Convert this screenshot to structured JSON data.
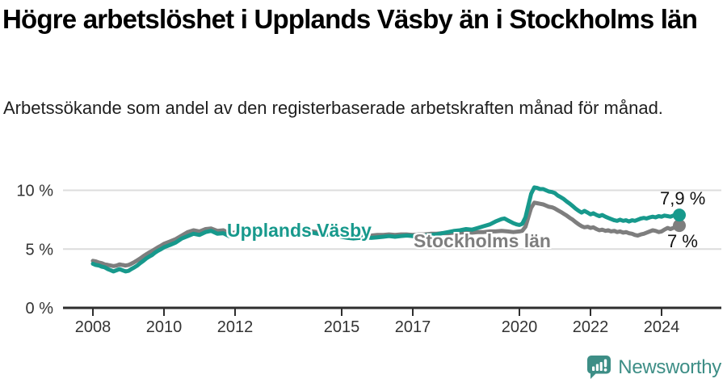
{
  "title": "Högre arbetslöshet i Upplands Väsby än i Stockholms län",
  "subtitle": "Arbetssökande som andel av den registerbaserade arbetskraften månad för månad.",
  "branding": {
    "logo_text": "Newsworthy",
    "color": "#3d8e86"
  },
  "chart_data": {
    "type": "line",
    "title": "Högre arbetslöshet i Upplands Väsby än i Stockholms län",
    "xlabel": "",
    "ylabel": "",
    "unit": "%",
    "grid": "horizontal",
    "legend_position": "inline-labels",
    "x_axis": {
      "range": [
        2008,
        2024.5
      ],
      "ticks": [
        2008,
        2010,
        2012,
        2015,
        2017,
        2020,
        2022,
        2024
      ]
    },
    "y_axis": {
      "range": [
        0,
        10.5
      ],
      "ticks": [
        {
          "value": 0,
          "label": "0 %"
        },
        {
          "value": 5,
          "label": "5 %"
        },
        {
          "value": 10,
          "label": "10 %"
        }
      ]
    },
    "series": [
      {
        "name": "Upplands Väsby",
        "slug": "upplands-vasby",
        "color": "#17998c",
        "end_label": "7,9 %",
        "end_value": 7.9,
        "points": [
          [
            2008,
            3.75
          ],
          [
            2008.08,
            3.65
          ],
          [
            2008.17,
            3.6
          ],
          [
            2008.25,
            3.5
          ],
          [
            2008.33,
            3.45
          ],
          [
            2008.42,
            3.3
          ],
          [
            2008.5,
            3.2
          ],
          [
            2008.58,
            3.1
          ],
          [
            2008.67,
            3.2
          ],
          [
            2008.75,
            3.3
          ],
          [
            2008.83,
            3.2
          ],
          [
            2008.92,
            3.1
          ],
          [
            2009,
            3.15
          ],
          [
            2009.08,
            3.3
          ],
          [
            2009.17,
            3.45
          ],
          [
            2009.25,
            3.6
          ],
          [
            2009.33,
            3.8
          ],
          [
            2009.42,
            4
          ],
          [
            2009.5,
            4.2
          ],
          [
            2009.58,
            4.35
          ],
          [
            2009.67,
            4.5
          ],
          [
            2009.75,
            4.7
          ],
          [
            2009.83,
            4.85
          ],
          [
            2009.92,
            5
          ],
          [
            2010,
            5.15
          ],
          [
            2010.17,
            5.35
          ],
          [
            2010.33,
            5.55
          ],
          [
            2010.5,
            5.9
          ],
          [
            2010.67,
            6.1
          ],
          [
            2010.83,
            6.3
          ],
          [
            2011,
            6.2
          ],
          [
            2011.17,
            6.45
          ],
          [
            2011.33,
            6.55
          ],
          [
            2011.5,
            6.3
          ],
          [
            2011.67,
            6.35
          ],
          [
            2011.83,
            6.1
          ],
          [
            2012,
            6.15
          ],
          [
            2012.17,
            6.3
          ],
          [
            2012.33,
            6.25
          ],
          [
            2012.5,
            6.3
          ],
          [
            2012.67,
            6.4
          ],
          [
            2012.83,
            6.3
          ],
          [
            2013,
            6.35
          ],
          [
            2013.17,
            6.3
          ],
          [
            2013.33,
            6.4
          ],
          [
            2013.5,
            6.3
          ],
          [
            2013.67,
            6.35
          ],
          [
            2013.83,
            6.3
          ],
          [
            2014,
            6.35
          ],
          [
            2014.17,
            6.4
          ],
          [
            2014.33,
            6.3
          ],
          [
            2014.5,
            6.25
          ],
          [
            2014.67,
            6.2
          ],
          [
            2014.83,
            6.15
          ],
          [
            2015,
            6.05
          ],
          [
            2015.17,
            5.95
          ],
          [
            2015.33,
            5.9
          ],
          [
            2015.5,
            5.95
          ],
          [
            2015.67,
            6
          ],
          [
            2015.83,
            5.95
          ],
          [
            2016,
            6
          ],
          [
            2016.17,
            6.05
          ],
          [
            2016.33,
            6.1
          ],
          [
            2016.5,
            6.05
          ],
          [
            2016.67,
            6.1
          ],
          [
            2016.83,
            6.15
          ],
          [
            2017,
            6.1
          ],
          [
            2017.17,
            6.2
          ],
          [
            2017.33,
            6.15
          ],
          [
            2017.5,
            6.2
          ],
          [
            2017.67,
            6.25
          ],
          [
            2017.83,
            6.35
          ],
          [
            2018,
            6.45
          ],
          [
            2018.17,
            6.55
          ],
          [
            2018.33,
            6.6
          ],
          [
            2018.5,
            6.7
          ],
          [
            2018.67,
            6.65
          ],
          [
            2018.83,
            6.8
          ],
          [
            2019,
            6.95
          ],
          [
            2019.17,
            7.1
          ],
          [
            2019.33,
            7.35
          ],
          [
            2019.5,
            7.55
          ],
          [
            2019.58,
            7.6
          ],
          [
            2019.67,
            7.45
          ],
          [
            2019.83,
            7.2
          ],
          [
            2019.92,
            7.1
          ],
          [
            2020,
            7.05
          ],
          [
            2020.08,
            7.15
          ],
          [
            2020.17,
            7.7
          ],
          [
            2020.25,
            8.7
          ],
          [
            2020.33,
            9.7
          ],
          [
            2020.42,
            10.25
          ],
          [
            2020.5,
            10.2
          ],
          [
            2020.58,
            10.1
          ],
          [
            2020.67,
            10.1
          ],
          [
            2020.75,
            10
          ],
          [
            2020.83,
            9.9
          ],
          [
            2020.92,
            9.85
          ],
          [
            2021,
            9.75
          ],
          [
            2021.08,
            9.55
          ],
          [
            2021.17,
            9.4
          ],
          [
            2021.25,
            9.25
          ],
          [
            2021.33,
            9.05
          ],
          [
            2021.42,
            8.85
          ],
          [
            2021.5,
            8.65
          ],
          [
            2021.58,
            8.45
          ],
          [
            2021.67,
            8.25
          ],
          [
            2021.75,
            8.1
          ],
          [
            2021.83,
            8.25
          ],
          [
            2021.92,
            8.1
          ],
          [
            2022,
            7.95
          ],
          [
            2022.08,
            8.05
          ],
          [
            2022.17,
            7.9
          ],
          [
            2022.25,
            7.8
          ],
          [
            2022.33,
            7.9
          ],
          [
            2022.42,
            7.75
          ],
          [
            2022.5,
            7.65
          ],
          [
            2022.58,
            7.55
          ],
          [
            2022.67,
            7.45
          ],
          [
            2022.75,
            7.4
          ],
          [
            2022.83,
            7.5
          ],
          [
            2022.92,
            7.4
          ],
          [
            2023,
            7.45
          ],
          [
            2023.08,
            7.35
          ],
          [
            2023.17,
            7.45
          ],
          [
            2023.25,
            7.4
          ],
          [
            2023.33,
            7.5
          ],
          [
            2023.42,
            7.6
          ],
          [
            2023.5,
            7.65
          ],
          [
            2023.58,
            7.6
          ],
          [
            2023.67,
            7.7
          ],
          [
            2023.75,
            7.75
          ],
          [
            2023.83,
            7.7
          ],
          [
            2023.92,
            7.8
          ],
          [
            2024,
            7.75
          ],
          [
            2024.08,
            7.85
          ],
          [
            2024.17,
            7.8
          ],
          [
            2024.25,
            7.75
          ],
          [
            2024.33,
            7.85
          ],
          [
            2024.42,
            7.8
          ],
          [
            2024.5,
            7.9
          ]
        ]
      },
      {
        "name": "Stockholms län",
        "slug": "stockholms-lan",
        "color": "#7e7e7e",
        "end_label": "7 %",
        "end_value": 7.0,
        "points": [
          [
            2008,
            4
          ],
          [
            2008.08,
            3.95
          ],
          [
            2008.17,
            3.85
          ],
          [
            2008.25,
            3.8
          ],
          [
            2008.33,
            3.7
          ],
          [
            2008.42,
            3.65
          ],
          [
            2008.5,
            3.6
          ],
          [
            2008.58,
            3.55
          ],
          [
            2008.67,
            3.6
          ],
          [
            2008.75,
            3.7
          ],
          [
            2008.83,
            3.65
          ],
          [
            2008.92,
            3.6
          ],
          [
            2009,
            3.65
          ],
          [
            2009.08,
            3.75
          ],
          [
            2009.17,
            3.9
          ],
          [
            2009.25,
            4.05
          ],
          [
            2009.33,
            4.2
          ],
          [
            2009.42,
            4.4
          ],
          [
            2009.5,
            4.55
          ],
          [
            2009.58,
            4.7
          ],
          [
            2009.67,
            4.85
          ],
          [
            2009.75,
            5
          ],
          [
            2009.83,
            5.15
          ],
          [
            2009.92,
            5.3
          ],
          [
            2010,
            5.45
          ],
          [
            2010.17,
            5.65
          ],
          [
            2010.33,
            5.85
          ],
          [
            2010.5,
            6.15
          ],
          [
            2010.67,
            6.45
          ],
          [
            2010.83,
            6.6
          ],
          [
            2011,
            6.5
          ],
          [
            2011.17,
            6.7
          ],
          [
            2011.33,
            6.75
          ],
          [
            2011.5,
            6.55
          ],
          [
            2011.67,
            6.6
          ],
          [
            2011.83,
            6.35
          ],
          [
            2012,
            6.4
          ],
          [
            2012.17,
            6.5
          ],
          [
            2012.33,
            6.45
          ],
          [
            2012.5,
            6.5
          ],
          [
            2012.67,
            6.55
          ],
          [
            2012.83,
            6.45
          ],
          [
            2013,
            6.5
          ],
          [
            2013.17,
            6.45
          ],
          [
            2013.33,
            6.55
          ],
          [
            2013.5,
            6.45
          ],
          [
            2013.67,
            6.5
          ],
          [
            2013.83,
            6.45
          ],
          [
            2014,
            6.5
          ],
          [
            2014.17,
            6.5
          ],
          [
            2014.33,
            6.45
          ],
          [
            2014.5,
            6.4
          ],
          [
            2014.67,
            6.35
          ],
          [
            2014.83,
            6.3
          ],
          [
            2015,
            6.25
          ],
          [
            2015.17,
            6.2
          ],
          [
            2015.33,
            6.15
          ],
          [
            2015.5,
            6.2
          ],
          [
            2015.67,
            6.2
          ],
          [
            2015.83,
            6.15
          ],
          [
            2016,
            6.2
          ],
          [
            2016.17,
            6.2
          ],
          [
            2016.33,
            6.25
          ],
          [
            2016.5,
            6.2
          ],
          [
            2016.67,
            6.25
          ],
          [
            2016.83,
            6.25
          ],
          [
            2017,
            6.2
          ],
          [
            2017.17,
            6.25
          ],
          [
            2017.33,
            6.25
          ],
          [
            2017.5,
            6.3
          ],
          [
            2017.67,
            6.3
          ],
          [
            2017.83,
            6.35
          ],
          [
            2018,
            6.35
          ],
          [
            2018.17,
            6.4
          ],
          [
            2018.33,
            6.4
          ],
          [
            2018.5,
            6.45
          ],
          [
            2018.67,
            6.4
          ],
          [
            2018.83,
            6.45
          ],
          [
            2019,
            6.45
          ],
          [
            2019.17,
            6.5
          ],
          [
            2019.33,
            6.5
          ],
          [
            2019.5,
            6.55
          ],
          [
            2019.67,
            6.5
          ],
          [
            2019.83,
            6.45
          ],
          [
            2020,
            6.5
          ],
          [
            2020.08,
            6.55
          ],
          [
            2020.17,
            6.9
          ],
          [
            2020.25,
            7.7
          ],
          [
            2020.33,
            8.5
          ],
          [
            2020.42,
            8.95
          ],
          [
            2020.5,
            8.9
          ],
          [
            2020.58,
            8.85
          ],
          [
            2020.67,
            8.8
          ],
          [
            2020.75,
            8.7
          ],
          [
            2020.83,
            8.6
          ],
          [
            2020.92,
            8.55
          ],
          [
            2021,
            8.45
          ],
          [
            2021.08,
            8.3
          ],
          [
            2021.17,
            8.15
          ],
          [
            2021.25,
            8
          ],
          [
            2021.33,
            7.85
          ],
          [
            2021.42,
            7.65
          ],
          [
            2021.5,
            7.5
          ],
          [
            2021.58,
            7.3
          ],
          [
            2021.67,
            7.1
          ],
          [
            2021.75,
            6.95
          ],
          [
            2021.83,
            6.85
          ],
          [
            2021.92,
            6.9
          ],
          [
            2022,
            6.8
          ],
          [
            2022.08,
            6.85
          ],
          [
            2022.17,
            6.7
          ],
          [
            2022.25,
            6.6
          ],
          [
            2022.33,
            6.65
          ],
          [
            2022.42,
            6.55
          ],
          [
            2022.5,
            6.6
          ],
          [
            2022.58,
            6.5
          ],
          [
            2022.67,
            6.55
          ],
          [
            2022.75,
            6.45
          ],
          [
            2022.83,
            6.5
          ],
          [
            2022.92,
            6.4
          ],
          [
            2023,
            6.45
          ],
          [
            2023.08,
            6.35
          ],
          [
            2023.17,
            6.3
          ],
          [
            2023.25,
            6.2
          ],
          [
            2023.33,
            6.15
          ],
          [
            2023.42,
            6.25
          ],
          [
            2023.5,
            6.3
          ],
          [
            2023.58,
            6.4
          ],
          [
            2023.67,
            6.5
          ],
          [
            2023.75,
            6.6
          ],
          [
            2023.83,
            6.55
          ],
          [
            2023.92,
            6.45
          ],
          [
            2024,
            6.5
          ],
          [
            2024.08,
            6.65
          ],
          [
            2024.17,
            6.8
          ],
          [
            2024.25,
            6.7
          ],
          [
            2024.33,
            6.8
          ],
          [
            2024.42,
            6.9
          ],
          [
            2024.5,
            7
          ]
        ]
      }
    ]
  }
}
